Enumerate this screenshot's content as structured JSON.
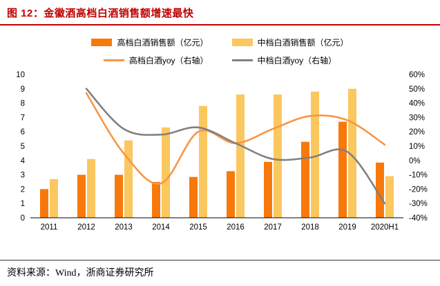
{
  "header": {
    "title": "图 12：金徽酒高档白酒销售额增速最快"
  },
  "footer": {
    "source": "资料来源：Wind，浙商证券研究所"
  },
  "colors": {
    "title_red": "#C00000",
    "bar_high": "#F8790B",
    "bar_mid": "#FBC75F",
    "line_high": "#F79646",
    "line_mid": "#808080"
  },
  "chart_data": {
    "type": "combo-bar-line",
    "categories": [
      "2011",
      "2012",
      "2013",
      "2014",
      "2015",
      "2016",
      "2017",
      "2018",
      "2019",
      "2020H1"
    ],
    "bar_series": [
      {
        "name": "高档白酒销售额（亿元）",
        "color_key": "bar_high",
        "values": [
          2.0,
          3.0,
          3.0,
          2.5,
          2.85,
          3.25,
          3.9,
          5.3,
          6.7,
          3.85
        ]
      },
      {
        "name": "中档白酒销售额（亿元）",
        "color_key": "bar_mid",
        "values": [
          2.7,
          4.1,
          5.4,
          6.3,
          7.8,
          8.6,
          8.6,
          8.8,
          9.0,
          2.9
        ]
      }
    ],
    "line_series": [
      {
        "name": "高档白酒yoy（右轴）",
        "color_key": "line_high",
        "values": [
          null,
          47,
          5,
          -16,
          20,
          12,
          22,
          31,
          28,
          11
        ]
      },
      {
        "name": "中档白酒yoy（右轴）",
        "color_key": "line_mid",
        "values": [
          null,
          50,
          22,
          18,
          23,
          12,
          1,
          2,
          6,
          -30
        ]
      }
    ],
    "left_axis": {
      "min": 0,
      "max": 10,
      "step": 1,
      "suffix": ""
    },
    "right_axis": {
      "min": -40,
      "max": 60,
      "step": 10,
      "suffix": "%"
    },
    "grid": false,
    "legend_position": "top"
  }
}
